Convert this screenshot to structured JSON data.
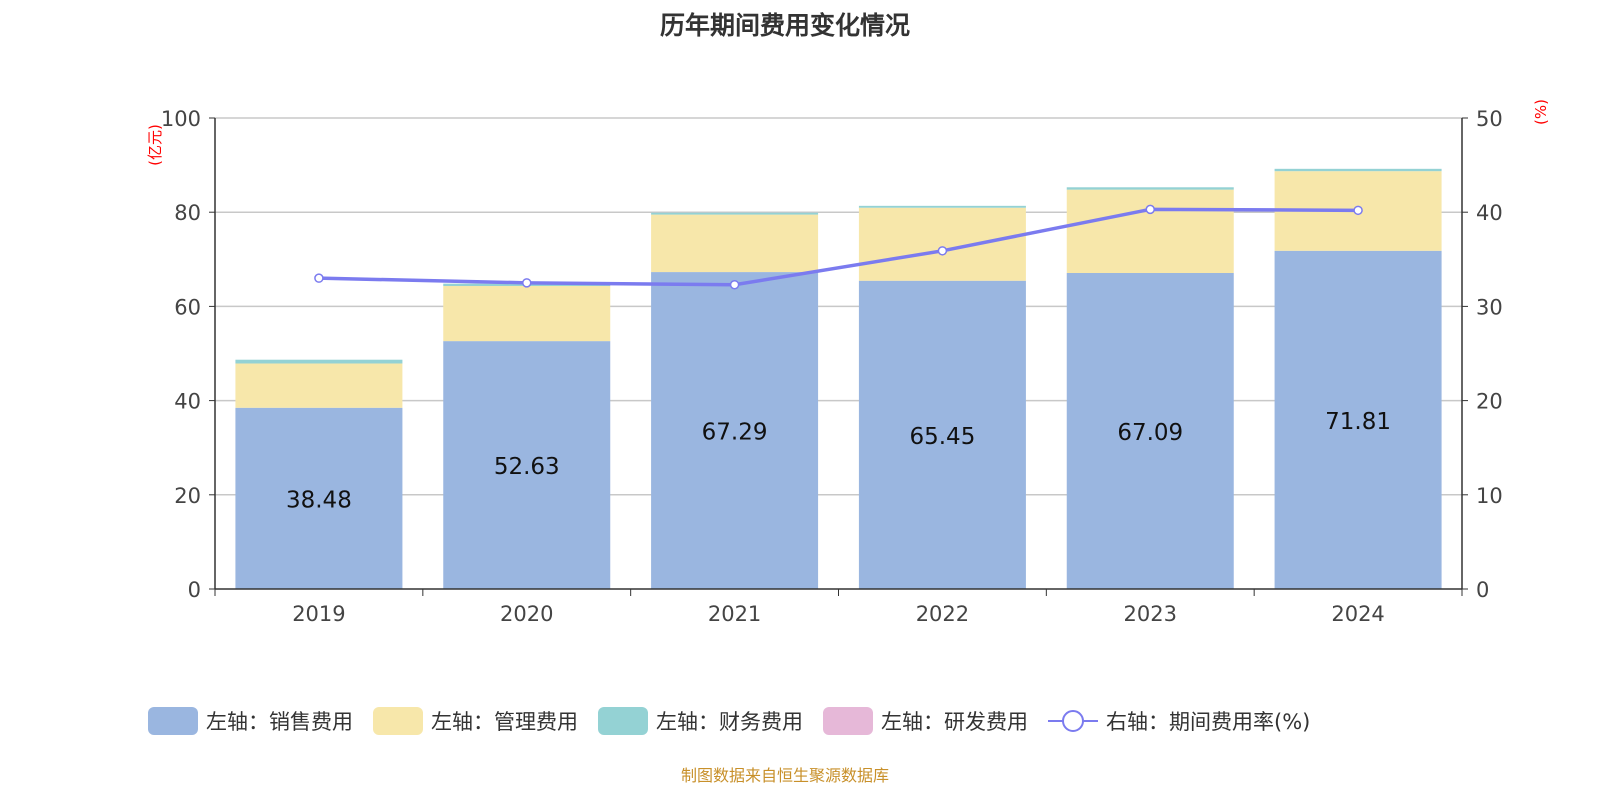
{
  "chart_data": {
    "type": "bar",
    "title": "历年期间费用变化情况",
    "categories": [
      "2019",
      "2020",
      "2021",
      "2022",
      "2023",
      "2024"
    ],
    "left_axis": {
      "label": "(亿元)",
      "range": [
        0,
        100
      ],
      "ticks": [
        0,
        20,
        40,
        60,
        80,
        100
      ]
    },
    "right_axis": {
      "label": "(%)",
      "range": [
        0,
        50
      ],
      "ticks": [
        0,
        10,
        20,
        30,
        40,
        50
      ]
    },
    "grid": true,
    "legend_position": "bottom",
    "series": [
      {
        "name": "左轴：销售费用",
        "type": "bar",
        "stack": true,
        "color": "#9ab6e0",
        "values": [
          38.48,
          52.63,
          67.29,
          65.45,
          67.09,
          71.81
        ],
        "labels": [
          "38.48",
          "52.63",
          "67.29",
          "65.45",
          "67.09",
          "71.81"
        ]
      },
      {
        "name": "左轴：管理费用",
        "type": "bar",
        "stack": true,
        "color": "#f7e7aa",
        "values": [
          9.4,
          11.7,
          12.2,
          15.5,
          17.7,
          16.9
        ]
      },
      {
        "name": "左轴：财务费用",
        "type": "bar",
        "stack": true,
        "color": "#94d2d4",
        "values": [
          0.8,
          0.5,
          0.4,
          0.4,
          0.5,
          0.5
        ]
      },
      {
        "name": "左轴：研发费用",
        "type": "bar",
        "stack": true,
        "color": "#e6b8d8",
        "values": [
          0,
          0,
          0,
          0,
          0,
          0
        ]
      },
      {
        "name": "右轴：期间费用率(%)",
        "type": "line",
        "axis": "right",
        "color": "#7b7bef",
        "values": [
          33.0,
          32.5,
          32.3,
          35.9,
          40.3,
          40.2
        ]
      }
    ]
  },
  "footer": "制图数据来自恒生聚源数据库"
}
